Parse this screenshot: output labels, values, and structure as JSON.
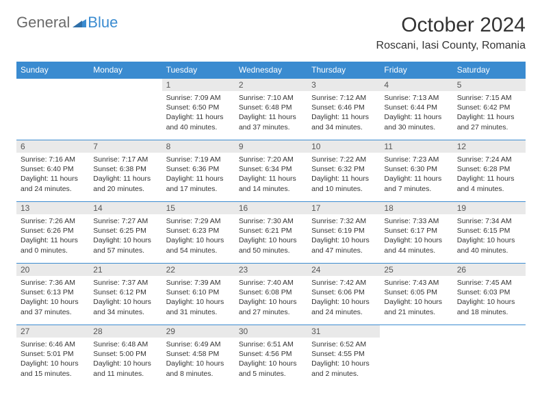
{
  "branding": {
    "word1": "General",
    "word2": "Blue",
    "color_general": "#6a6a6a",
    "color_blue": "#3a8bd0",
    "triangle_color": "#3a8bd0"
  },
  "header": {
    "month_title": "October 2024",
    "location": "Roscani, Iasi County, Romania"
  },
  "style": {
    "header_bg": "#3a8bd0",
    "header_text": "#ffffff",
    "daynum_bg": "#e9e9e9",
    "border_color": "#3a8bd0",
    "body_text": "#333333",
    "dow_fontsize": 12,
    "daynum_fontsize": 12,
    "daytext_fontsize": 10.5,
    "title_fontsize": 30,
    "location_fontsize": 16
  },
  "dow": [
    "Sunday",
    "Monday",
    "Tuesday",
    "Wednesday",
    "Thursday",
    "Friday",
    "Saturday"
  ],
  "weeks": [
    [
      null,
      null,
      {
        "n": "1",
        "sr": "7:09 AM",
        "ss": "6:50 PM",
        "dl": "11 hours and 40 minutes."
      },
      {
        "n": "2",
        "sr": "7:10 AM",
        "ss": "6:48 PM",
        "dl": "11 hours and 37 minutes."
      },
      {
        "n": "3",
        "sr": "7:12 AM",
        "ss": "6:46 PM",
        "dl": "11 hours and 34 minutes."
      },
      {
        "n": "4",
        "sr": "7:13 AM",
        "ss": "6:44 PM",
        "dl": "11 hours and 30 minutes."
      },
      {
        "n": "5",
        "sr": "7:15 AM",
        "ss": "6:42 PM",
        "dl": "11 hours and 27 minutes."
      }
    ],
    [
      {
        "n": "6",
        "sr": "7:16 AM",
        "ss": "6:40 PM",
        "dl": "11 hours and 24 minutes."
      },
      {
        "n": "7",
        "sr": "7:17 AM",
        "ss": "6:38 PM",
        "dl": "11 hours and 20 minutes."
      },
      {
        "n": "8",
        "sr": "7:19 AM",
        "ss": "6:36 PM",
        "dl": "11 hours and 17 minutes."
      },
      {
        "n": "9",
        "sr": "7:20 AM",
        "ss": "6:34 PM",
        "dl": "11 hours and 14 minutes."
      },
      {
        "n": "10",
        "sr": "7:22 AM",
        "ss": "6:32 PM",
        "dl": "11 hours and 10 minutes."
      },
      {
        "n": "11",
        "sr": "7:23 AM",
        "ss": "6:30 PM",
        "dl": "11 hours and 7 minutes."
      },
      {
        "n": "12",
        "sr": "7:24 AM",
        "ss": "6:28 PM",
        "dl": "11 hours and 4 minutes."
      }
    ],
    [
      {
        "n": "13",
        "sr": "7:26 AM",
        "ss": "6:26 PM",
        "dl": "11 hours and 0 minutes."
      },
      {
        "n": "14",
        "sr": "7:27 AM",
        "ss": "6:25 PM",
        "dl": "10 hours and 57 minutes."
      },
      {
        "n": "15",
        "sr": "7:29 AM",
        "ss": "6:23 PM",
        "dl": "10 hours and 54 minutes."
      },
      {
        "n": "16",
        "sr": "7:30 AM",
        "ss": "6:21 PM",
        "dl": "10 hours and 50 minutes."
      },
      {
        "n": "17",
        "sr": "7:32 AM",
        "ss": "6:19 PM",
        "dl": "10 hours and 47 minutes."
      },
      {
        "n": "18",
        "sr": "7:33 AM",
        "ss": "6:17 PM",
        "dl": "10 hours and 44 minutes."
      },
      {
        "n": "19",
        "sr": "7:34 AM",
        "ss": "6:15 PM",
        "dl": "10 hours and 40 minutes."
      }
    ],
    [
      {
        "n": "20",
        "sr": "7:36 AM",
        "ss": "6:13 PM",
        "dl": "10 hours and 37 minutes."
      },
      {
        "n": "21",
        "sr": "7:37 AM",
        "ss": "6:12 PM",
        "dl": "10 hours and 34 minutes."
      },
      {
        "n": "22",
        "sr": "7:39 AM",
        "ss": "6:10 PM",
        "dl": "10 hours and 31 minutes."
      },
      {
        "n": "23",
        "sr": "7:40 AM",
        "ss": "6:08 PM",
        "dl": "10 hours and 27 minutes."
      },
      {
        "n": "24",
        "sr": "7:42 AM",
        "ss": "6:06 PM",
        "dl": "10 hours and 24 minutes."
      },
      {
        "n": "25",
        "sr": "7:43 AM",
        "ss": "6:05 PM",
        "dl": "10 hours and 21 minutes."
      },
      {
        "n": "26",
        "sr": "7:45 AM",
        "ss": "6:03 PM",
        "dl": "10 hours and 18 minutes."
      }
    ],
    [
      {
        "n": "27",
        "sr": "6:46 AM",
        "ss": "5:01 PM",
        "dl": "10 hours and 15 minutes."
      },
      {
        "n": "28",
        "sr": "6:48 AM",
        "ss": "5:00 PM",
        "dl": "10 hours and 11 minutes."
      },
      {
        "n": "29",
        "sr": "6:49 AM",
        "ss": "4:58 PM",
        "dl": "10 hours and 8 minutes."
      },
      {
        "n": "30",
        "sr": "6:51 AM",
        "ss": "4:56 PM",
        "dl": "10 hours and 5 minutes."
      },
      {
        "n": "31",
        "sr": "6:52 AM",
        "ss": "4:55 PM",
        "dl": "10 hours and 2 minutes."
      },
      null,
      null
    ]
  ],
  "labels": {
    "sunrise_prefix": "Sunrise: ",
    "sunset_prefix": "Sunset: ",
    "daylight_prefix": "Daylight: "
  }
}
